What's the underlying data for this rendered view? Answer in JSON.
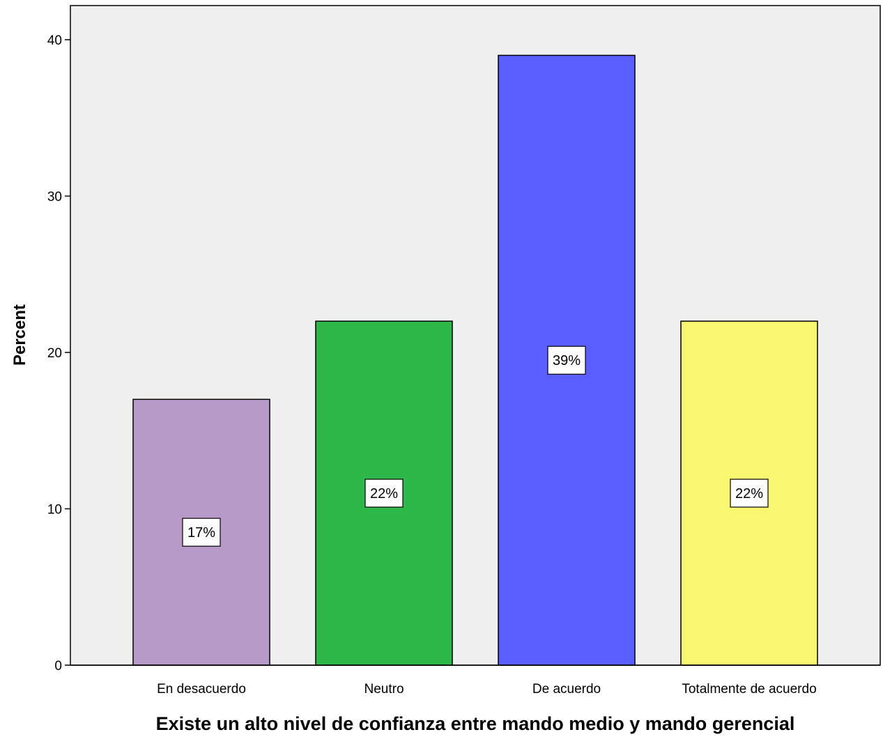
{
  "chart_data": {
    "type": "bar",
    "categories": [
      "En desacuerdo",
      "Neutro",
      "De acuerdo",
      "Totalmente de acuerdo"
    ],
    "values": [
      17,
      22,
      39,
      22
    ],
    "data_labels": [
      "17%",
      "22%",
      "39%",
      "22%"
    ],
    "colors": [
      "#b89ac8",
      "#2fb84a",
      "#5b5eff",
      "#f9f670"
    ],
    "xlabel": "Existe un alto nivel de confianza entre mando medio y mando gerencial",
    "ylabel": "Percent",
    "ylim": [
      0,
      42
    ],
    "yticks": [
      0,
      10,
      20,
      30,
      40
    ],
    "ytick_labels": [
      "0",
      "10",
      "20",
      "30",
      "40"
    ],
    "grid": false,
    "plot_background": "#f0f0f0"
  }
}
